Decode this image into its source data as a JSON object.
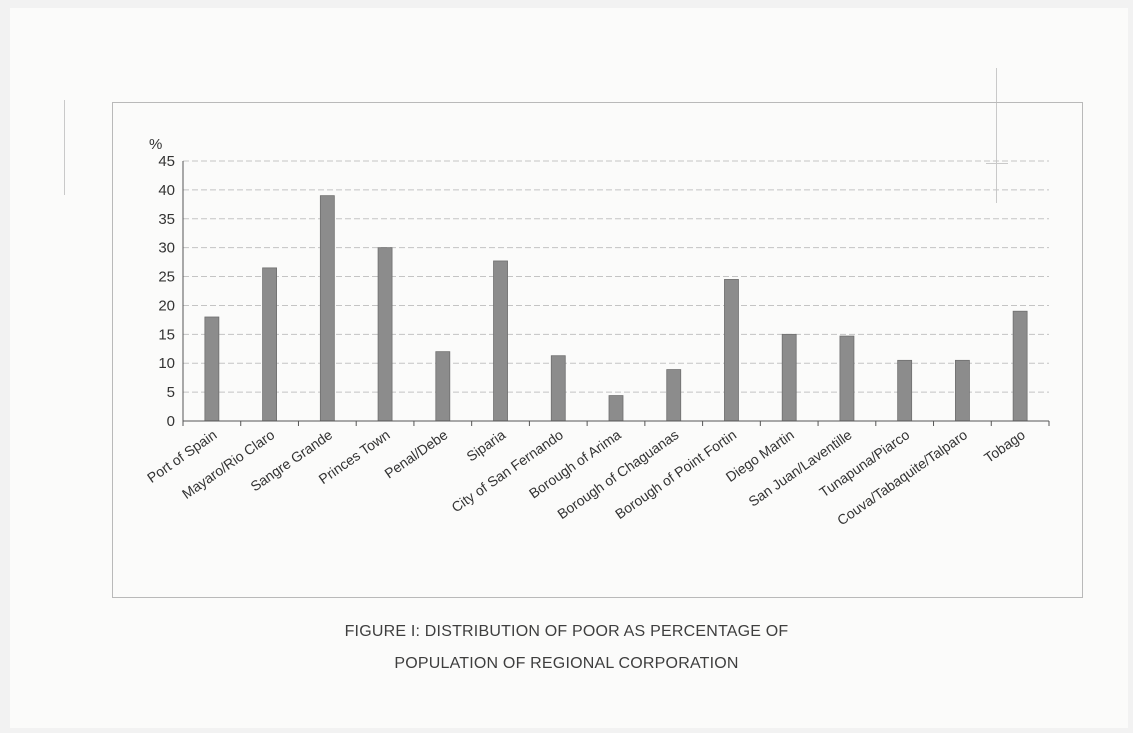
{
  "figure": {
    "caption_line1": "FIGURE I: DISTRIBUTION OF POOR AS PERCENTAGE OF",
    "caption_line2": "POPULATION OF REGIONAL CORPORATION"
  },
  "colors": {
    "bar": "#8c8c8c",
    "grid": "#c4c4c4",
    "axis": "#555555",
    "text": "#333333"
  },
  "chart_data": {
    "type": "bar",
    "ylabel": "%",
    "ylim": [
      0,
      45
    ],
    "yticks": [
      0,
      5,
      10,
      15,
      20,
      25,
      30,
      35,
      40,
      45
    ],
    "grid": true,
    "legend": "none",
    "categories": [
      "Port of Spain",
      "Mayaro/Rio Claro",
      "Sangre Grande",
      "Princes Town",
      "Penal/Debe",
      "Siparia",
      "City of San Fernando",
      "Borough of Arima",
      "Borough of Chaguanas",
      "Borough of Point Fortin",
      "Diego Martin",
      "San Juan/Laventille",
      "Tunapuna/Piarco",
      "Couva/Tabaquite/Talparo",
      "Tobago"
    ],
    "values": [
      18.0,
      26.5,
      39.0,
      30.0,
      12.0,
      27.7,
      11.3,
      4.4,
      8.9,
      24.5,
      15.0,
      14.7,
      10.5,
      10.5,
      19.0
    ]
  }
}
